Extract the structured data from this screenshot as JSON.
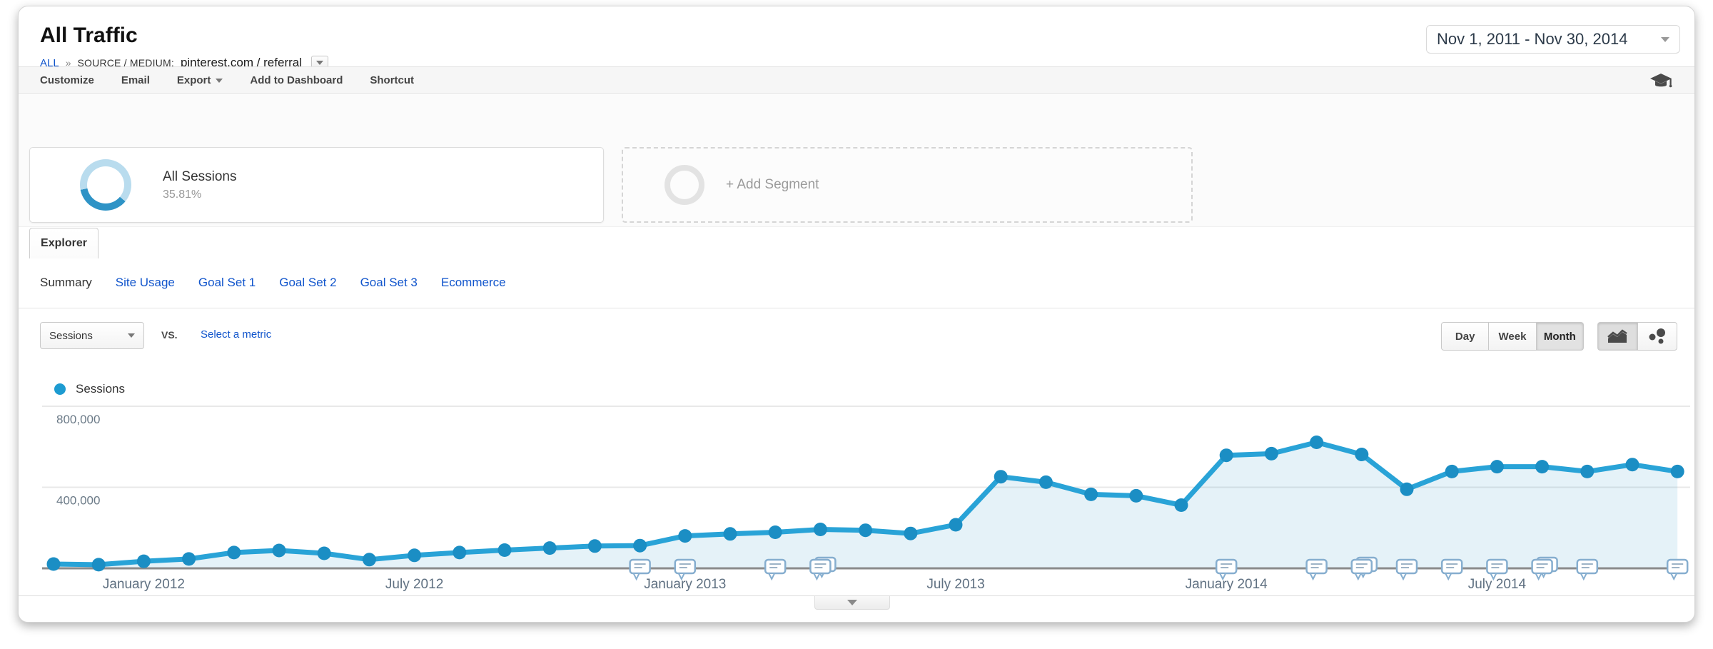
{
  "header": {
    "title": "All Traffic",
    "breadcrumb": {
      "all": "ALL",
      "separator": "»",
      "dimension_label": "SOURCE / MEDIUM:",
      "dimension_value": "pinterest.com / referral"
    },
    "date_range": "Nov 1, 2011 - Nov 30, 2014"
  },
  "toolbar": {
    "items": [
      "Customize",
      "Email",
      "Export",
      "Add to Dashboard",
      "Shortcut"
    ]
  },
  "segments": {
    "all_sessions": {
      "label": "All Sessions",
      "percent": "35.81%"
    },
    "add_segment_label": "+ Add Segment"
  },
  "explorer": {
    "tab_label": "Explorer",
    "subtabs": [
      {
        "label": "Summary",
        "active": true
      },
      {
        "label": "Site Usage",
        "active": false
      },
      {
        "label": "Goal Set 1",
        "active": false
      },
      {
        "label": "Goal Set 2",
        "active": false
      },
      {
        "label": "Goal Set 3",
        "active": false
      },
      {
        "label": "Ecommerce",
        "active": false
      }
    ]
  },
  "controls": {
    "metric_selector": "Sessions",
    "vs_label": "vs.",
    "compare_link": "Select a metric",
    "granularity": [
      "Day",
      "Week",
      "Month"
    ],
    "granularity_active": "Month",
    "chart_type_active": "line-chart"
  },
  "legend": {
    "series_label": "Sessions"
  },
  "colors": {
    "line_blue": "#29a3d7",
    "dot_blue": "#1787bb",
    "area_fill": "rgba(41,148,200,0.12)",
    "link_blue": "#1155cc",
    "segment_arc": "#2e93c6",
    "segment_ring": "#b9dcee",
    "axis_text": "#5f7081",
    "date_text": "#2c3a49"
  },
  "chart_data": {
    "type": "area",
    "series_name": "Sessions",
    "x": [
      "Nov 2011",
      "Dec 2011",
      "Jan 2012",
      "Feb 2012",
      "Mar 2012",
      "Apr 2012",
      "May 2012",
      "Jun 2012",
      "Jul 2012",
      "Aug 2012",
      "Sep 2012",
      "Oct 2012",
      "Nov 2012",
      "Dec 2012",
      "Jan 2013",
      "Feb 2013",
      "Mar 2013",
      "Apr 2013",
      "May 2013",
      "Jun 2013",
      "Jul 2013",
      "Aug 2013",
      "Sep 2013",
      "Oct 2013",
      "Nov 2013",
      "Dec 2013",
      "Jan 2014",
      "Feb 2014",
      "Mar 2014",
      "Apr 2014",
      "May 2014",
      "Jun 2014",
      "Jul 2014",
      "Aug 2014",
      "Sep 2014",
      "Oct 2014",
      "Nov 2014"
    ],
    "values": [
      21000,
      18000,
      35000,
      46000,
      78000,
      88000,
      74000,
      43000,
      64000,
      78000,
      90000,
      100000,
      110000,
      112000,
      160000,
      170000,
      178000,
      192000,
      188000,
      172000,
      215000,
      452000,
      425000,
      365000,
      358000,
      312000,
      558000,
      566000,
      622000,
      562000,
      390000,
      478000,
      502000,
      502000,
      478000,
      512000,
      478000
    ],
    "xticks": [
      {
        "label": "January 2012",
        "month": "Jan 2012"
      },
      {
        "label": "July 2012",
        "month": "Jul 2012"
      },
      {
        "label": "January 2013",
        "month": "Jan 2013"
      },
      {
        "label": "July 2013",
        "month": "Jul 2013"
      },
      {
        "label": "January 2014",
        "month": "Jan 2014"
      },
      {
        "label": "July 2014",
        "month": "Jul 2014"
      }
    ],
    "ytick_labels": [
      "800,000",
      "400,000"
    ],
    "ytick_values": [
      800000,
      400000
    ],
    "ylim": [
      0,
      850000
    ],
    "grid": true,
    "legend_position": "top-left",
    "annotations": [
      {
        "month": "Dec 2012",
        "stacked": false
      },
      {
        "month": "Jan 2013",
        "stacked": false
      },
      {
        "month": "Mar 2013",
        "stacked": false
      },
      {
        "month": "Apr 2013",
        "stacked": true
      },
      {
        "month": "Jan 2014",
        "stacked": false
      },
      {
        "month": "Mar 2014",
        "stacked": false
      },
      {
        "month": "Apr 2014",
        "stacked": true
      },
      {
        "month": "May 2014",
        "stacked": false
      },
      {
        "month": "Jun 2014",
        "stacked": false
      },
      {
        "month": "Jul 2014",
        "stacked": false
      },
      {
        "month": "Aug 2014",
        "stacked": true
      },
      {
        "month": "Sep 2014",
        "stacked": false
      },
      {
        "month": "Nov 2014",
        "stacked": false
      }
    ],
    "line_color": "#29a3d7",
    "dot_color": "#1b8ec4",
    "fill_color": "rgba(41,148,200,0.12)"
  }
}
